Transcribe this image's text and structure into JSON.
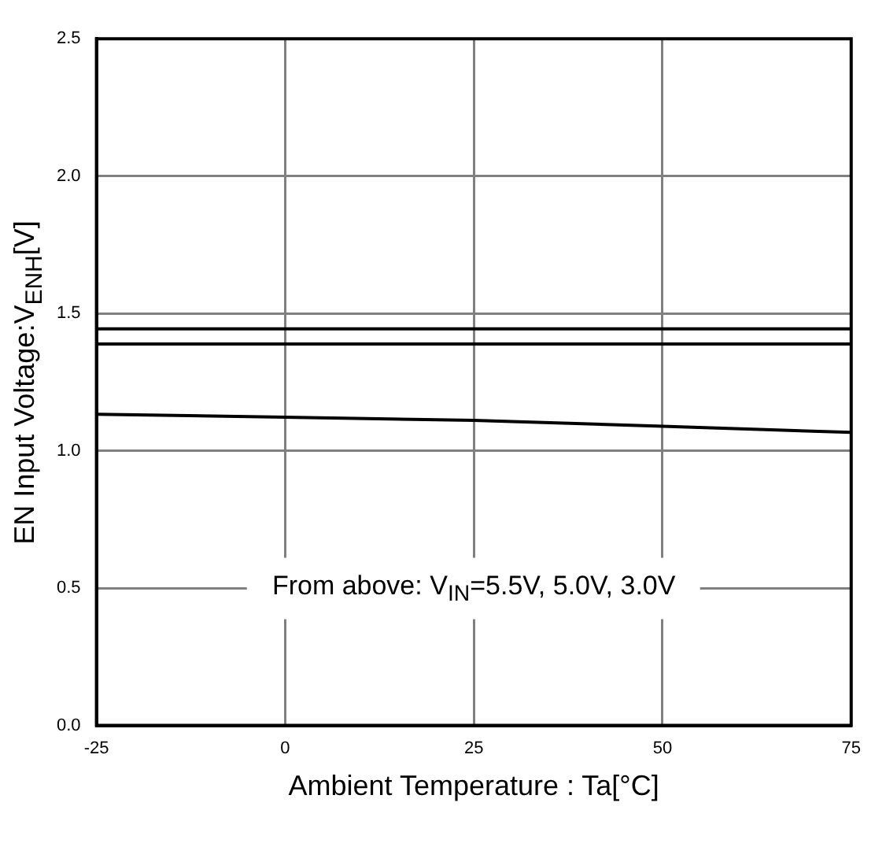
{
  "chart_data": {
    "type": "line",
    "xlabel": "Ambient Temperature : Ta[°C]",
    "ylabel": "EN Input Voltage:V$_{ENH}$[V]",
    "x": [
      -25,
      0,
      25,
      50,
      75
    ],
    "series": [
      {
        "color": "#000000",
        "values": [
          1.444,
          1.444,
          1.444,
          1.444,
          1.444
        ]
      },
      {
        "color": "#000000",
        "values": [
          1.389,
          1.389,
          1.389,
          1.389,
          1.389
        ]
      },
      {
        "color": "#000000",
        "values": [
          1.133,
          1.122,
          1.111,
          1.089,
          1.067
        ]
      }
    ],
    "xlim": [
      -25,
      75
    ],
    "xticks": [
      -25,
      0,
      25,
      50,
      75
    ],
    "ylim": [
      0,
      2.5
    ],
    "yticks": [
      {
        "value": 0,
        "label": "0.0"
      },
      {
        "value": 0.5,
        "label": "0.5"
      },
      {
        "value": 1,
        "label": "1.0"
      },
      {
        "value": 1.5,
        "label": "1.5"
      },
      {
        "value": 2,
        "label": "2.0"
      },
      {
        "value": 2.5,
        "label": "2.5"
      }
    ],
    "grid": true,
    "legend": false,
    "marker": "none",
    "line_style": "solid",
    "annotations": [
      "From above: V$_{IN}$=5.5V, 5.0V, 3.0V"
    ]
  }
}
